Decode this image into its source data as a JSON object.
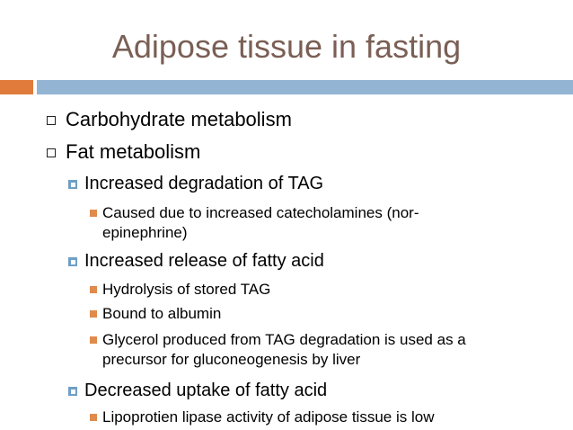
{
  "slide": {
    "title": "Adipose tissue in fasting",
    "items": [
      {
        "level": 1,
        "text": "Carbohydrate metabolism"
      },
      {
        "level": 1,
        "text": "Fat metabolism"
      },
      {
        "level": 2,
        "text": "Increased degradation of TAG"
      },
      {
        "level": 3,
        "text": "Caused due to increased catecholamines (nor-",
        "cont": "epinephrine)"
      },
      {
        "level": 2,
        "text": "Increased release of fatty acid"
      },
      {
        "level": 3,
        "text": "Hydrolysis of stored TAG"
      },
      {
        "level": 3,
        "text": "Bound to albumin"
      },
      {
        "level": 3,
        "text": "Glycerol produced from TAG degradation is used as a",
        "cont": "precursor for gluconeogenesis by liver"
      },
      {
        "level": 2,
        "text": "Decreased uptake of fatty acid"
      },
      {
        "level": 3,
        "text": "Lipoprotien lipase activity of  adipose tissue is low"
      }
    ]
  },
  "colors": {
    "title": "#7a5f55",
    "accent_orange": "#e07b3c",
    "accent_blue": "#93b4d3",
    "bullet_blue": "#6f9fc5",
    "bullet_orange": "#e08a4c"
  }
}
